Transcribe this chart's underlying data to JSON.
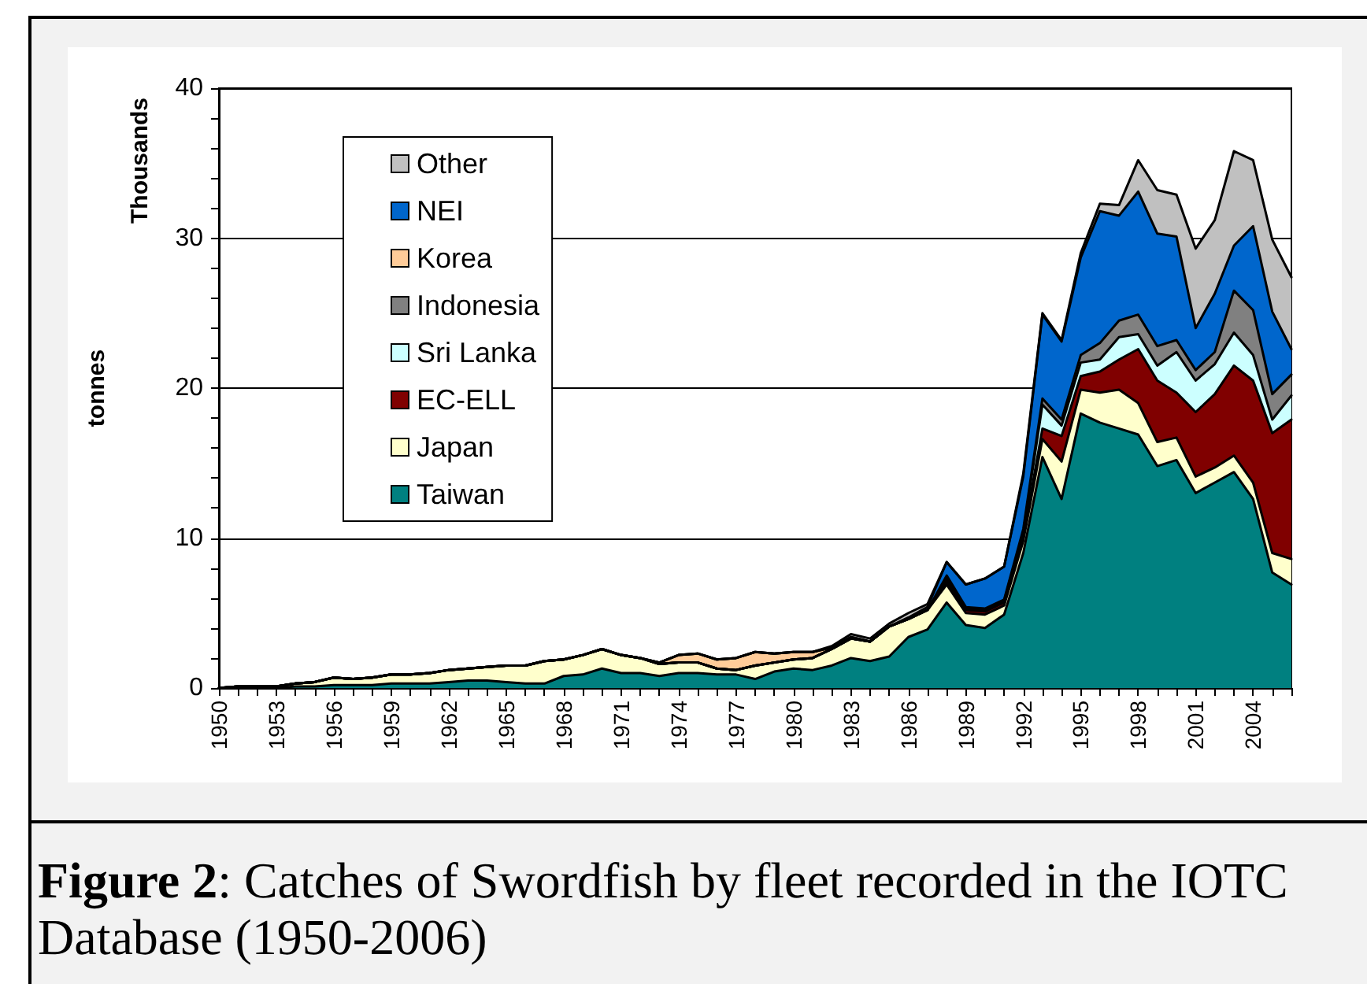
{
  "chart_data": {
    "type": "area",
    "stacked": true,
    "title": "Figure 2: Catches of Swordfish by fleet recorded in the IOTC Database (1950-2006)",
    "ylabel": "tonnes",
    "annotations": [
      "Thousands"
    ],
    "categories": [
      "1950",
      null,
      null,
      "1953",
      null,
      null,
      "1956",
      null,
      null,
      "1959",
      null,
      null,
      "1962",
      null,
      null,
      "1965",
      null,
      null,
      "1968",
      null,
      null,
      "1971",
      null,
      null,
      "1974",
      null,
      null,
      "1977",
      null,
      null,
      "1980",
      null,
      null,
      "1983",
      null,
      null,
      "1986",
      null,
      null,
      "1989",
      null,
      null,
      "1992",
      null,
      null,
      "1995",
      null,
      null,
      "1998",
      null,
      null,
      "2001",
      null,
      null,
      "2004",
      null,
      null
    ],
    "series": [
      {
        "name": "Taiwan",
        "color": "#008080",
        "values": [
          0,
          0,
          0,
          0,
          0.1,
          0.1,
          0.2,
          0.2,
          0.2,
          0.3,
          0.3,
          0.3,
          0.4,
          0.5,
          0.5,
          0.4,
          0.3,
          0.3,
          0.8,
          0.9,
          1.3,
          1.0,
          1.0,
          0.8,
          1.0,
          1.0,
          0.9,
          0.9,
          0.6,
          1.1,
          1.3,
          1.2,
          1.5,
          2.0,
          1.8,
          2.1,
          3.4,
          3.9,
          5.7,
          4.2,
          4.0,
          4.9,
          9.0,
          15.4,
          12.6,
          18.3,
          17.7,
          17.3,
          16.9,
          14.8,
          15.2,
          13.0,
          13.7,
          14.4,
          12.6,
          7.7,
          6.9
        ]
      },
      {
        "name": "Japan",
        "color": "#ffffcc",
        "values": [
          0,
          0.1,
          0.1,
          0.1,
          0.2,
          0.3,
          0.5,
          0.4,
          0.5,
          0.6,
          0.6,
          0.7,
          0.8,
          0.8,
          0.9,
          1.1,
          1.2,
          1.5,
          1.1,
          1.3,
          1.3,
          1.2,
          1.0,
          0.8,
          0.7,
          0.7,
          0.4,
          0.3,
          0.9,
          0.6,
          0.6,
          0.8,
          1.1,
          1.3,
          1.3,
          2.0,
          1.2,
          1.3,
          1.2,
          0.8,
          0.9,
          0.6,
          0.8,
          1.2,
          2.5,
          1.6,
          2.0,
          2.6,
          2.1,
          1.6,
          1.5,
          1.1,
          1.0,
          1.1,
          1.1,
          1.3,
          1.7
        ]
      },
      {
        "name": "EC-ELL",
        "color": "#800000",
        "values": [
          0,
          0,
          0,
          0,
          0,
          0,
          0,
          0,
          0,
          0,
          0,
          0,
          0,
          0,
          0,
          0,
          0,
          0,
          0,
          0,
          0,
          0,
          0,
          0,
          0,
          0,
          0,
          0,
          0,
          0,
          0,
          0,
          0,
          0,
          0,
          0,
          0,
          0,
          0.2,
          0.2,
          0.2,
          0.2,
          0.3,
          0.7,
          1.7,
          0.9,
          1.4,
          2.0,
          3.6,
          4.1,
          3.0,
          4.3,
          4.9,
          6.0,
          6.8,
          8.0,
          9.3
        ]
      },
      {
        "name": "Sri Lanka",
        "color": "#ccffff",
        "values": [
          0,
          0,
          0,
          0,
          0,
          0,
          0,
          0,
          0,
          0,
          0,
          0,
          0,
          0,
          0,
          0,
          0,
          0,
          0,
          0,
          0,
          0,
          0,
          0,
          0,
          0,
          0,
          0,
          0,
          0,
          0,
          0,
          0,
          0,
          0,
          0,
          0,
          0,
          0.2,
          0.1,
          0.1,
          0.1,
          0.3,
          1.6,
          0.7,
          0.9,
          0.8,
          1.5,
          1.0,
          1.0,
          2.7,
          2.1,
          2.0,
          2.2,
          1.7,
          0.9,
          1.6
        ]
      },
      {
        "name": "Indonesia",
        "color": "#808080",
        "values": [
          0,
          0,
          0,
          0,
          0,
          0,
          0,
          0,
          0,
          0,
          0,
          0,
          0,
          0,
          0,
          0,
          0,
          0,
          0,
          0,
          0,
          0,
          0,
          0,
          0,
          0,
          0,
          0,
          0,
          0,
          0,
          0,
          0,
          0,
          0,
          0,
          0,
          0,
          0.2,
          0.1,
          0.1,
          0.1,
          0.2,
          0.4,
          0.4,
          0.5,
          1.1,
          1.1,
          1.3,
          1.3,
          0.8,
          0.7,
          0.8,
          2.8,
          3.0,
          1.7,
          1.4
        ]
      },
      {
        "name": "Korea",
        "color": "#ffcc99",
        "values": [
          null,
          null,
          null,
          null,
          null,
          null,
          null,
          null,
          null,
          null,
          null,
          null,
          null,
          null,
          null,
          null,
          null,
          null,
          null,
          null,
          null,
          null,
          0,
          0.1,
          0.5,
          0.6,
          0.6,
          0.8,
          0.9,
          0.6,
          0.5,
          0.4,
          0.1,
          0.1,
          0,
          null,
          null,
          null,
          null,
          null,
          null,
          null,
          null,
          null,
          null,
          null,
          null,
          null,
          null,
          null,
          null,
          null,
          null,
          null,
          null,
          null,
          null
        ]
      },
      {
        "name": "NEI",
        "color": "#0066cc",
        "values": [
          0,
          0,
          0,
          0,
          0,
          0,
          0,
          0,
          0,
          0,
          0,
          0,
          0,
          0,
          0,
          0,
          0,
          0,
          0,
          0,
          0,
          0,
          0,
          0,
          0,
          0,
          0,
          0,
          0,
          0,
          0,
          0,
          0,
          0,
          0,
          0,
          0.1,
          0.2,
          0.9,
          1.5,
          2.0,
          2.2,
          3.5,
          5.6,
          5.2,
          6.5,
          8.8,
          7.0,
          8.2,
          7.5,
          6.9,
          2.8,
          3.9,
          3.0,
          5.6,
          5.5,
          1.7
        ]
      },
      {
        "name": "Other",
        "color": "#c0c0c0",
        "values": [
          0,
          0,
          0,
          0,
          0,
          0,
          0,
          0,
          0,
          0,
          0,
          0,
          0,
          0,
          0,
          0,
          0,
          0,
          0,
          0,
          0,
          0,
          0,
          0,
          0,
          0,
          0,
          0,
          0,
          0,
          0,
          0,
          0.1,
          0.2,
          0.2,
          0.2,
          0.3,
          0.2,
          0,
          0,
          0,
          0,
          0.2,
          0.1,
          0.1,
          0.3,
          0.5,
          0.7,
          2.1,
          2.9,
          2.8,
          5.3,
          4.9,
          6.3,
          4.4,
          4.8,
          4.8
        ]
      }
    ],
    "ylim": [
      0,
      40
    ],
    "yticks": [
      0,
      {
        "value": 2,
        "label": null
      },
      {
        "value": 4,
        "label": null
      },
      {
        "value": 6,
        "label": null
      },
      {
        "value": 8,
        "label": null
      },
      10,
      {
        "value": 12,
        "label": null
      },
      {
        "value": 14,
        "label": null
      },
      {
        "value": 16,
        "label": null
      },
      {
        "value": 18,
        "label": null
      },
      20,
      {
        "value": 22,
        "label": null
      },
      {
        "value": 24,
        "label": null
      },
      {
        "value": 26,
        "label": null
      },
      {
        "value": 28,
        "label": null
      },
      30,
      {
        "value": 32,
        "label": null
      },
      {
        "value": 34,
        "label": null
      },
      {
        "value": 36,
        "label": null
      },
      {
        "value": 38,
        "label": null
      },
      40
    ],
    "grid": "y",
    "legend": "top left",
    "marker": "none"
  }
}
